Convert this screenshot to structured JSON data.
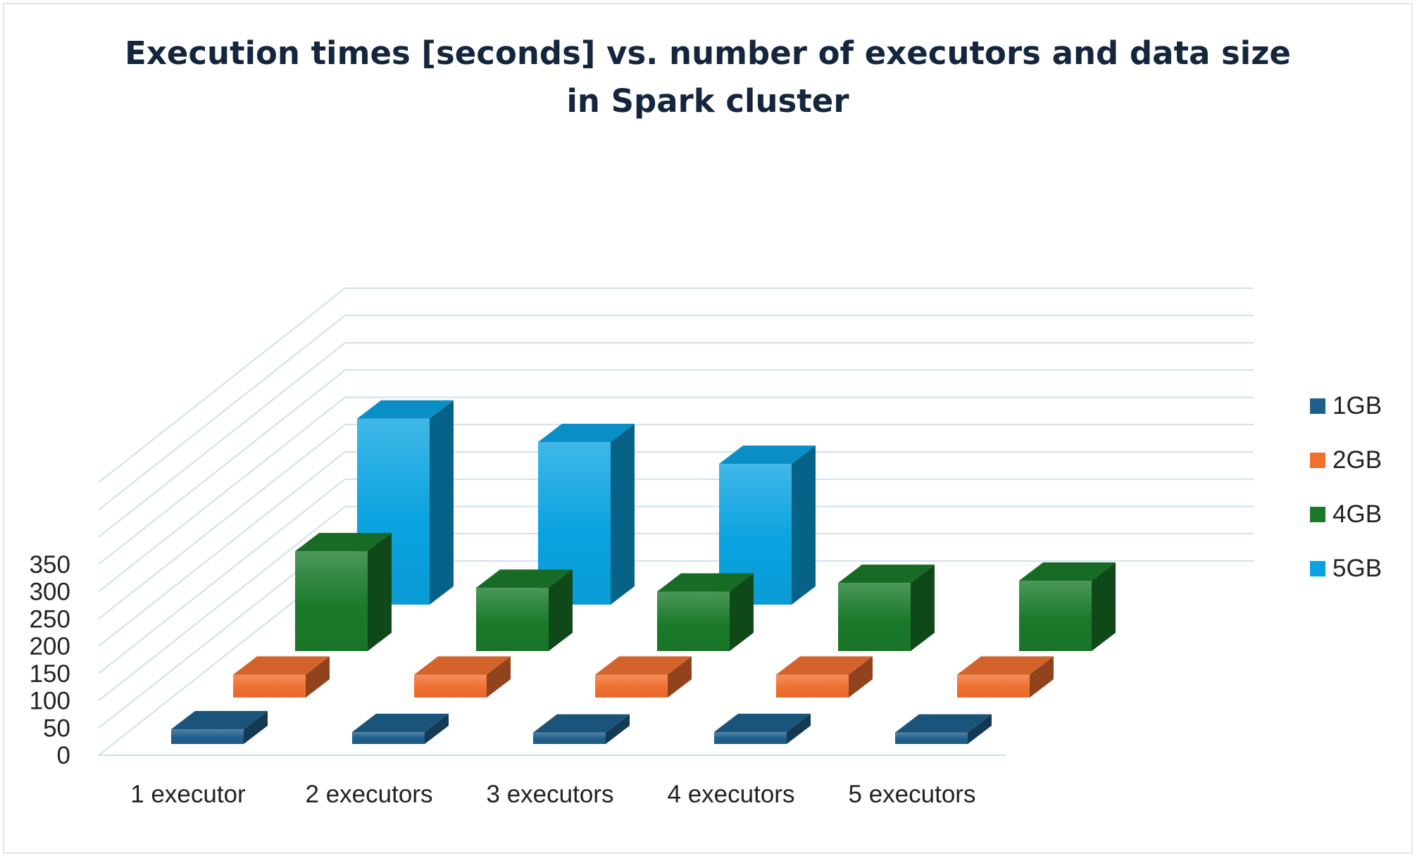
{
  "chart_data": {
    "type": "bar",
    "subtype": "3d-clustered-column",
    "title": "Execution times [seconds] vs. number of executors and data size in Spark cluster",
    "xlabel": "",
    "ylabel": "",
    "categories": [
      "1 executor",
      "2 executors",
      "3 executors",
      "4 executors",
      "5 executors"
    ],
    "ylim": [
      0,
      350
    ],
    "yticks": [
      "0",
      "50",
      "100",
      "150",
      "200",
      "250",
      "300",
      "350"
    ],
    "grid": true,
    "legend_position": "right",
    "series": [
      {
        "name": "1GB",
        "color": "#1f5f8b",
        "values": [
          27,
          22,
          21,
          22,
          21
        ]
      },
      {
        "name": "2GB",
        "color": "#f07030",
        "values": [
          42,
          42,
          42,
          42,
          42
        ]
      },
      {
        "name": "4GB",
        "color": "#1a7a2a",
        "values": [
          183,
          116,
          109,
          125,
          129
        ]
      },
      {
        "name": "5GB",
        "color": "#0aa3e0",
        "values": [
          341,
          298,
          258,
          0,
          0
        ]
      }
    ]
  }
}
